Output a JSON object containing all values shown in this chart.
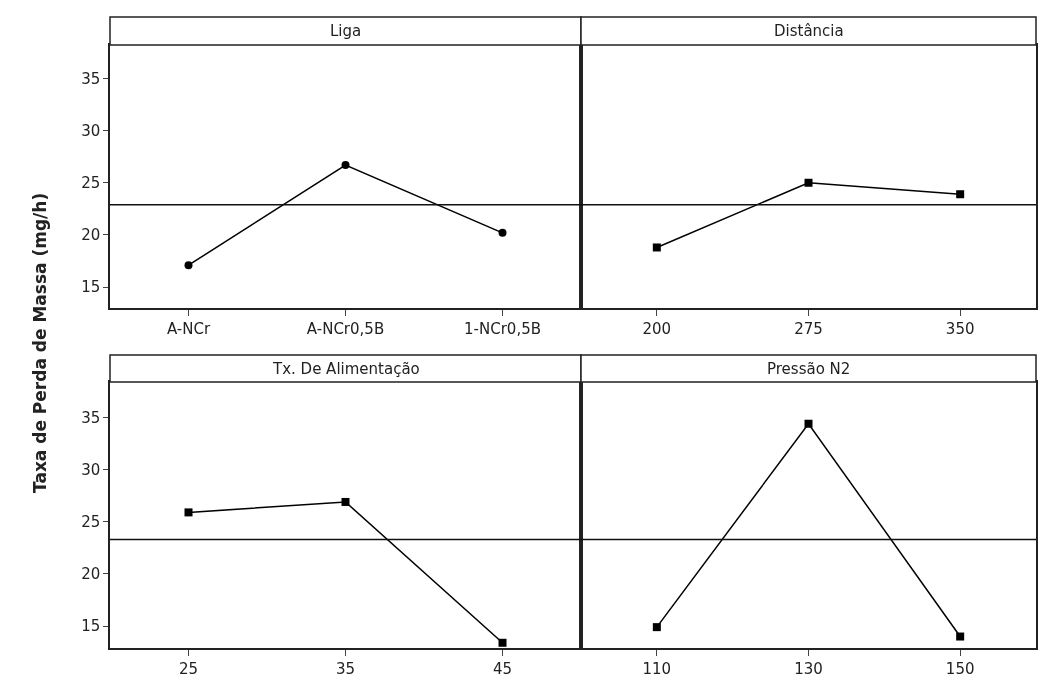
{
  "chart_data": [
    {
      "type": "line",
      "title": "Liga",
      "ylabel": "Taxa de Perda de Massa (mg/h)",
      "categories": [
        "A-NCr",
        "A-NCr0,5B",
        "1-NCr0,5B"
      ],
      "values": [
        17.1,
        26.7,
        20.2
      ],
      "color": "#000000",
      "marker": "circle",
      "ylim": [
        13,
        38.2
      ],
      "yticks": [
        15,
        20,
        25,
        30,
        35
      ],
      "ref_lines": [
        {
          "axis": "y",
          "value": 22.9
        }
      ]
    },
    {
      "type": "line",
      "title": "Distância",
      "categories": [
        "200",
        "275",
        "350"
      ],
      "values": [
        18.8,
        25.0,
        23.9
      ],
      "color": "#000000",
      "marker": "square",
      "ylim": [
        13,
        38.2
      ],
      "tick_labels": "x",
      "ref_lines": [
        {
          "axis": "y",
          "value": 22.9
        }
      ]
    },
    {
      "type": "line",
      "title": "Tx. De Alimentação",
      "categories": [
        "25",
        "35",
        "45"
      ],
      "values": [
        25.9,
        26.9,
        13.4
      ],
      "color": "#000000",
      "marker": "square",
      "ylim": [
        12.9,
        38.4
      ],
      "yticks": [
        15,
        20,
        25,
        30,
        35
      ],
      "ref_lines": [
        {
          "axis": "y",
          "value": 23.3
        }
      ]
    },
    {
      "type": "line",
      "title": "Pressão N2",
      "categories": [
        "110",
        "130",
        "150"
      ],
      "values": [
        14.9,
        34.4,
        14.0
      ],
      "color": "#000000",
      "marker": "square",
      "ylim": [
        12.9,
        38.4
      ],
      "tick_labels": "x",
      "ref_lines": [
        {
          "axis": "y",
          "value": 23.3
        }
      ]
    }
  ]
}
